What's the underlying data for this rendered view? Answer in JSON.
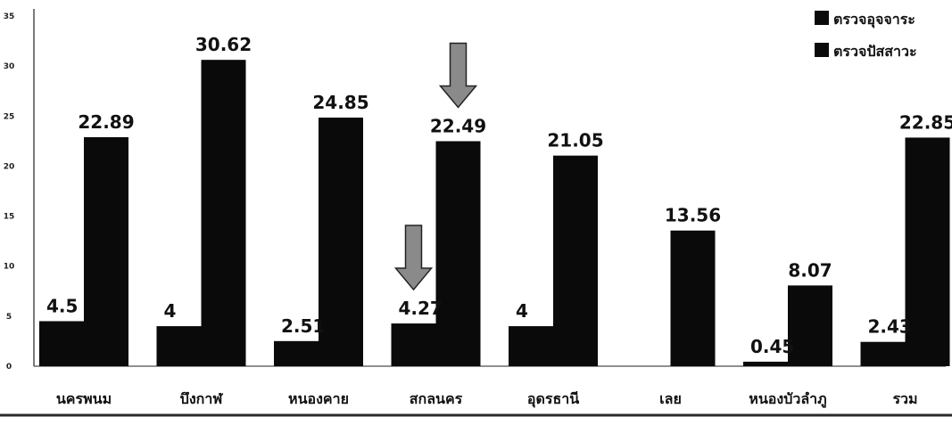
{
  "chart_data": {
    "type": "bar",
    "title": "",
    "xlabel": "",
    "ylabel": "",
    "ylim": [
      0,
      35
    ],
    "yticks": [
      0,
      5,
      10,
      15,
      20,
      25,
      30,
      35
    ],
    "grid": false,
    "legend_position": "top-right",
    "categories": [
      "นครพนม",
      "บึงกาฬ",
      "หนองคาย",
      "สกลนคร",
      "อุดรธานี",
      "เลย",
      "หนองบัวลำภู",
      "รวม"
    ],
    "series": [
      {
        "name": "ตรวจอุจจาระ",
        "color": "#0a0a0a",
        "values": [
          4.5,
          4,
          2.51,
          4.27,
          4,
          null,
          0.45,
          2.43
        ],
        "labels": [
          "4.5",
          "4",
          "2.51",
          "4.27",
          "4",
          "",
          "0.45",
          "2.43"
        ]
      },
      {
        "name": "ตรวจปัสสาวะ",
        "color": "#0a0a0a",
        "values": [
          22.89,
          30.62,
          24.85,
          22.49,
          21.05,
          13.56,
          8.07,
          22.85
        ],
        "labels": [
          "22.89",
          "30.62",
          "24.85",
          "22.49",
          "21.05",
          "13.56",
          "8.07",
          "22.85"
        ]
      }
    ],
    "annotations": [
      {
        "type": "arrow-down",
        "category": "สกลนคร",
        "series": "ตรวจอุจจาระ",
        "color": "#8a8a8a"
      },
      {
        "type": "arrow-down",
        "category": "สกลนคร",
        "series": "ตรวจปัสสาวะ",
        "color": "#8a8a8a"
      }
    ]
  }
}
